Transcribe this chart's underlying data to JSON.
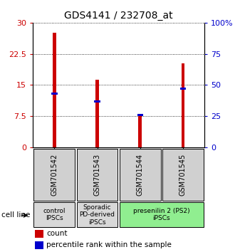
{
  "title": "GDS4141 / 232708_at",
  "samples": [
    "GSM701542",
    "GSM701543",
    "GSM701544",
    "GSM701545"
  ],
  "counts": [
    27.5,
    16.2,
    8.0,
    20.2
  ],
  "percentiles": [
    43.0,
    37.0,
    26.0,
    47.0
  ],
  "left_ylim": [
    0,
    30
  ],
  "right_ylim": [
    0,
    100
  ],
  "left_yticks": [
    0,
    7.5,
    15,
    22.5,
    30
  ],
  "right_yticks": [
    0,
    25,
    50,
    75,
    100
  ],
  "right_yticklabels": [
    "0",
    "25",
    "50",
    "75",
    "100%"
  ],
  "bar_color": "#cc0000",
  "percentile_color": "#0000cc",
  "cell_line_groups": [
    {
      "label": "control\nIPSCs",
      "samples": [
        0
      ],
      "color": "#d8d8d8"
    },
    {
      "label": "Sporadic\nPD-derived\niPSCs",
      "samples": [
        1
      ],
      "color": "#d8d8d8"
    },
    {
      "label": "presenilin 2 (PS2)\niPSCs",
      "samples": [
        2,
        3
      ],
      "color": "#90ee90"
    }
  ],
  "legend_count_label": "count",
  "legend_pct_label": "percentile rank within the sample",
  "cell_line_label": "cell line",
  "bar_width": 0.08,
  "tick_label_color_left": "#cc0000",
  "tick_label_color_right": "#0000cc"
}
